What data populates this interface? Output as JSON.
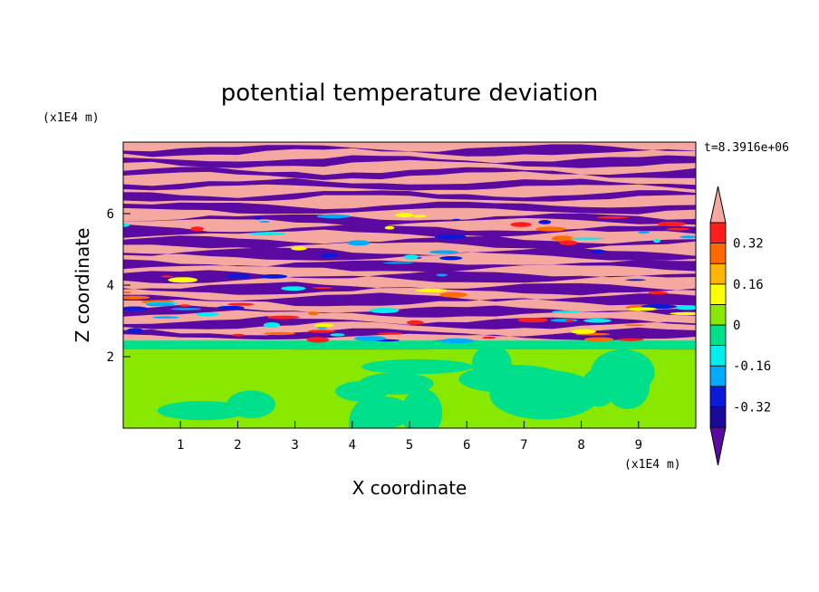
{
  "chart_data": {
    "type": "heatmap",
    "title": "potential temperature deviation",
    "xlabel": "X coordinate",
    "ylabel": "Z coordinate",
    "x_unit": "(x1E4 m)",
    "y_unit": "(x1E4 m)",
    "time_label": "t=8.3916e+06",
    "xlim": [
      0,
      10
    ],
    "ylim": [
      0,
      8
    ],
    "x_ticks": [
      1,
      2,
      3,
      4,
      5,
      6,
      7,
      8,
      9
    ],
    "y_ticks": [
      2,
      4,
      6
    ],
    "colorbar": {
      "levels": [
        -0.4,
        -0.32,
        -0.24,
        -0.16,
        -0.08,
        0,
        0.08,
        0.16,
        0.24,
        0.32,
        0.4
      ],
      "labels": [
        "0.32",
        "0.16",
        "0",
        "-0.16",
        "-0.32"
      ],
      "label_values": [
        0.32,
        0.16,
        0,
        -0.16,
        -0.32
      ],
      "colors": [
        "#5a0aa0",
        "#1a0a9a",
        "#0a1ad8",
        "#00aaff",
        "#00eeee",
        "#00e08a",
        "#88e800",
        "#ffff00",
        "#ffb400",
        "#ff6a00",
        "#ff1e1e",
        "#f5a8a0"
      ],
      "extend": "both"
    },
    "regions": [
      {
        "name": "upper layer",
        "zrange": [
          2.2,
          8
        ],
        "pattern": "alternating bands",
        "colors": [
          "#f5a8a0",
          "#5a0aa0"
        ]
      },
      {
        "name": "lower layer",
        "zrange": [
          0,
          2.2
        ],
        "pattern": "mixed",
        "colors": [
          "#00e08a",
          "#88e800"
        ]
      }
    ]
  }
}
